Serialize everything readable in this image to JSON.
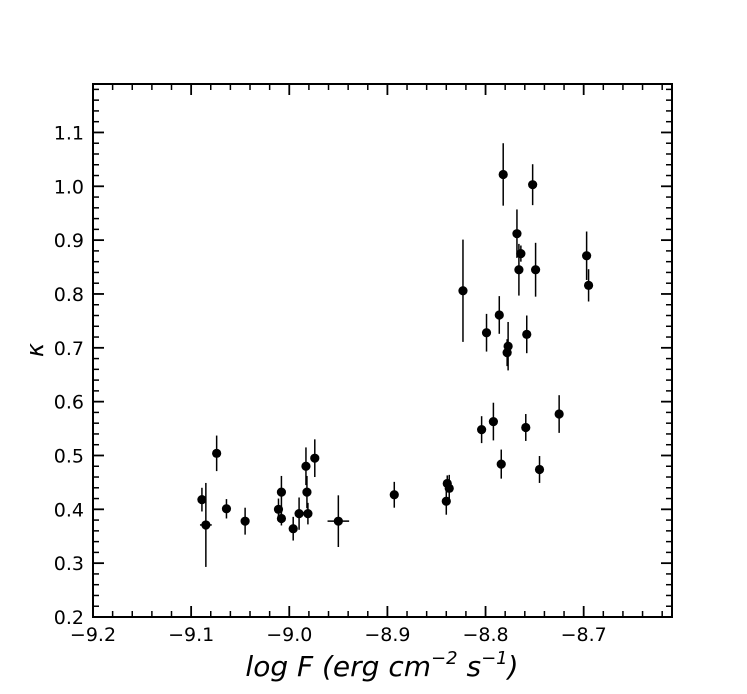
{
  "chart_data": {
    "type": "scatter",
    "xlabel": "log F (erg cm",
    "xlabel_exp1": "−2",
    "xlabel_mid": " s",
    "xlabel_exp2": "−1",
    "xlabel_end": ")",
    "ylabel": "κ",
    "xlim": [
      -9.2,
      -8.61
    ],
    "ylim": [
      0.2,
      1.19
    ],
    "xticks": [
      -9.2,
      -9.1,
      -9.0,
      -8.9,
      -8.8,
      -8.7
    ],
    "xtick_labels": [
      "−9.2",
      "−9.1",
      "−9.0",
      "−8.9",
      "−8.8",
      "−8.7"
    ],
    "yticks": [
      0.2,
      0.3,
      0.4,
      0.5,
      0.6,
      0.7,
      0.8,
      0.9,
      1.0,
      1.1
    ],
    "ytick_labels": [
      "0.2",
      "0.3",
      "0.4",
      "0.5",
      "0.6",
      "0.7",
      "0.8",
      "0.9",
      "1.0",
      "1.1"
    ],
    "grid": false,
    "marker_color": "#000000",
    "points": [
      {
        "x": -9.089,
        "y": 0.418,
        "yerr": 0.022
      },
      {
        "x": -9.085,
        "y": 0.371,
        "yerr": 0.078,
        "xerr": 0.006
      },
      {
        "x": -9.074,
        "y": 0.504,
        "yerr": 0.033
      },
      {
        "x": -9.064,
        "y": 0.401,
        "yerr": 0.018
      },
      {
        "x": -9.045,
        "y": 0.378,
        "yerr": 0.025
      },
      {
        "x": -9.011,
        "y": 0.4,
        "yerr": 0.02
      },
      {
        "x": -9.008,
        "y": 0.432,
        "yerr": 0.03
      },
      {
        "x": -9.008,
        "y": 0.383,
        "yerr": 0.013
      },
      {
        "x": -8.996,
        "y": 0.364,
        "yerr": 0.022
      },
      {
        "x": -8.99,
        "y": 0.392,
        "yerr": 0.03
      },
      {
        "x": -8.983,
        "y": 0.48,
        "yerr": 0.035
      },
      {
        "x": -8.982,
        "y": 0.432,
        "yerr": 0.03
      },
      {
        "x": -8.981,
        "y": 0.392,
        "yerr": 0.02
      },
      {
        "x": -8.974,
        "y": 0.495,
        "yerr": 0.035
      },
      {
        "x": -8.95,
        "y": 0.378,
        "yerr": 0.048,
        "xerr": 0.011
      },
      {
        "x": -8.893,
        "y": 0.427,
        "yerr": 0.024
      },
      {
        "x": -8.84,
        "y": 0.415,
        "yerr": 0.025
      },
      {
        "x": -8.839,
        "y": 0.448,
        "yerr": 0.015
      },
      {
        "x": -8.837,
        "y": 0.439,
        "yerr": 0.025
      },
      {
        "x": -8.823,
        "y": 0.806,
        "yerr": 0.095,
        "xerr": 0.004
      },
      {
        "x": -8.804,
        "y": 0.548,
        "yerr": 0.025
      },
      {
        "x": -8.799,
        "y": 0.728,
        "yerr": 0.035
      },
      {
        "x": -8.792,
        "y": 0.563,
        "yerr": 0.035
      },
      {
        "x": -8.786,
        "y": 0.761,
        "yerr": 0.035
      },
      {
        "x": -8.784,
        "y": 0.484,
        "yerr": 0.027
      },
      {
        "x": -8.782,
        "y": 1.022,
        "yerr": 0.058
      },
      {
        "x": -8.778,
        "y": 0.691,
        "yerr": 0.025
      },
      {
        "x": -8.777,
        "y": 0.703,
        "yerr": 0.045
      },
      {
        "x": -8.768,
        "y": 0.912,
        "yerr": 0.045
      },
      {
        "x": -8.766,
        "y": 0.845,
        "yerr": 0.048
      },
      {
        "x": -8.764,
        "y": 0.875,
        "yerr": 0.015
      },
      {
        "x": -8.759,
        "y": 0.552,
        "yerr": 0.025
      },
      {
        "x": -8.758,
        "y": 0.725,
        "yerr": 0.035
      },
      {
        "x": -8.752,
        "y": 1.003,
        "yerr": 0.038
      },
      {
        "x": -8.749,
        "y": 0.845,
        "yerr": 0.05
      },
      {
        "x": -8.745,
        "y": 0.474,
        "yerr": 0.025
      },
      {
        "x": -8.725,
        "y": 0.577,
        "yerr": 0.035
      },
      {
        "x": -8.697,
        "y": 0.871,
        "yerr": 0.045
      },
      {
        "x": -8.695,
        "y": 0.816,
        "yerr": 0.03
      }
    ]
  }
}
